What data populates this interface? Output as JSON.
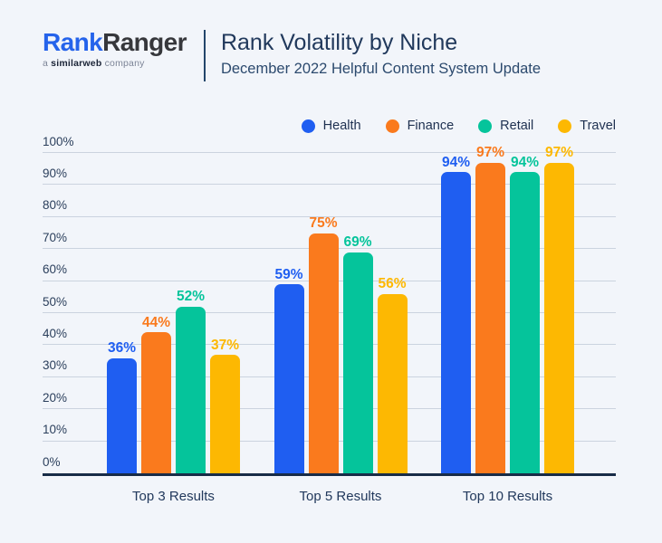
{
  "header": {
    "logo": {
      "part1": "Rank",
      "part2": "Ranger",
      "tagline_prefix": "a",
      "tagline_brand": "similarweb",
      "tagline_suffix": "company"
    },
    "title": "Rank Volatility by Niche",
    "subtitle": "December 2022 Helpful Content System Update"
  },
  "colors": {
    "health": "#1F5EF1",
    "finance": "#FA7A1D",
    "retail": "#05C49B",
    "travel": "#FDB802",
    "background": "#F2F5FA",
    "axis": "#182C47",
    "gridline": "#CBD3DF",
    "text_navy": "#22395C",
    "logo_blue": "#2563EB"
  },
  "chart_data": {
    "type": "bar",
    "title": "Rank Volatility by Niche",
    "subtitle": "December 2022 Helpful Content System Update",
    "categories": [
      "Top 3 Results",
      "Top 5 Results",
      "Top 10 Results"
    ],
    "series": [
      {
        "name": "Health",
        "color_key": "health",
        "values": [
          36,
          59,
          94
        ]
      },
      {
        "name": "Finance",
        "color_key": "finance",
        "values": [
          44,
          75,
          97
        ]
      },
      {
        "name": "Retail",
        "color_key": "retail",
        "values": [
          52,
          69,
          94
        ]
      },
      {
        "name": "Travel",
        "color_key": "travel",
        "values": [
          37,
          56,
          97
        ]
      }
    ],
    "xlabel": "",
    "ylabel": "",
    "ylim": [
      0,
      100
    ],
    "y_tick_step": 10,
    "y_tick_labels": [
      "0%",
      "10%",
      "20%",
      "30%",
      "40%",
      "50%",
      "60%",
      "70%",
      "80%",
      "90%",
      "100%"
    ],
    "value_label_format": "percent",
    "grid": true,
    "legend_position": "top-right"
  }
}
